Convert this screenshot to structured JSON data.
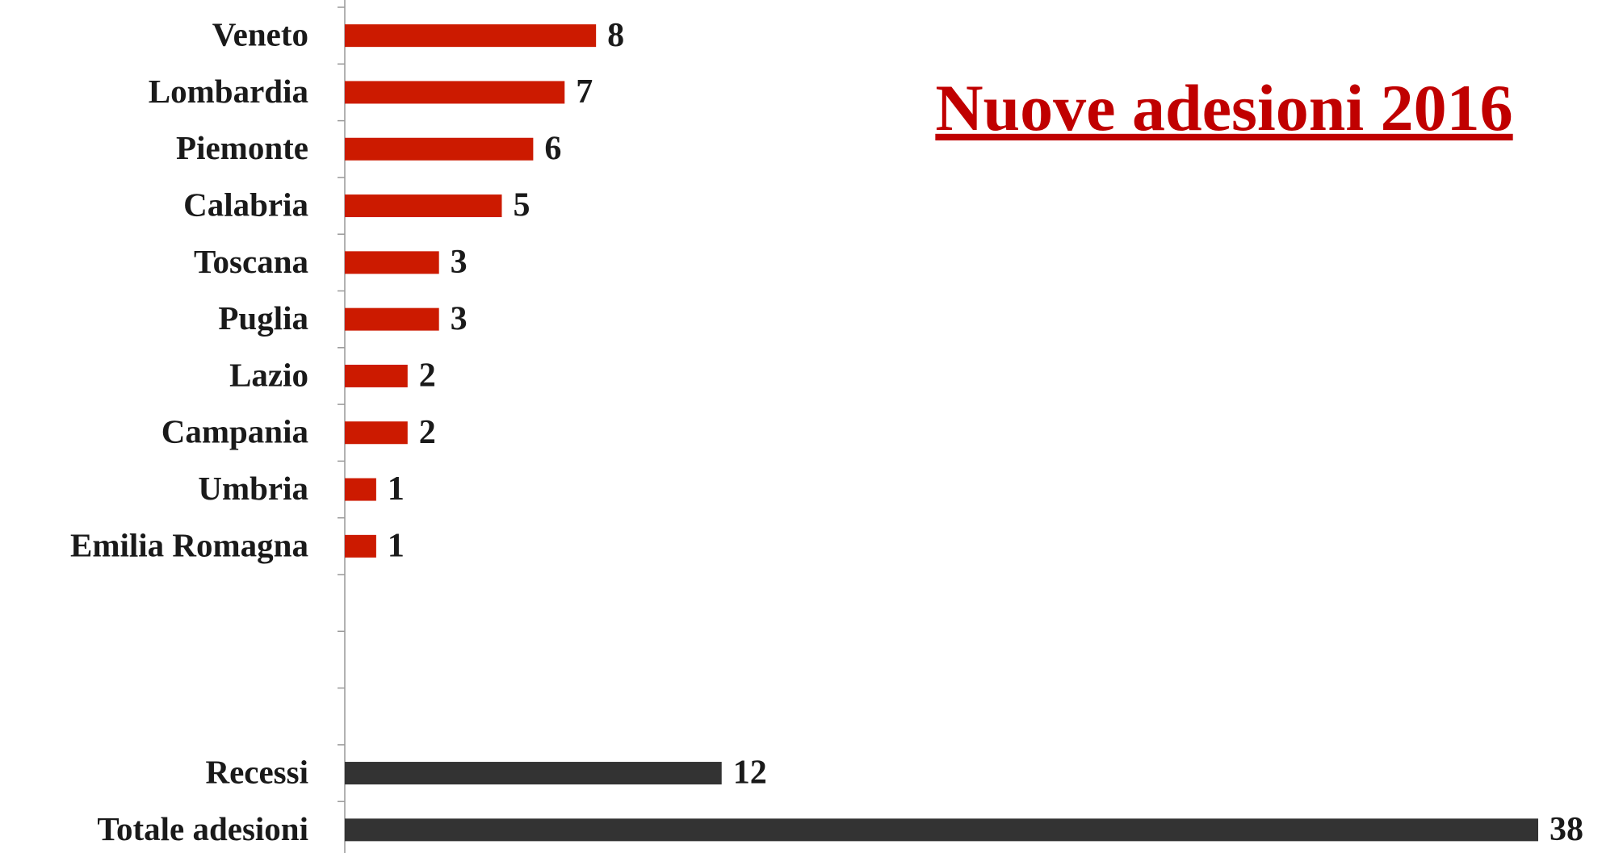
{
  "chart_data": {
    "type": "barh",
    "title": "Nuove adesioni 2016",
    "title_color": "#c00000",
    "categories": [
      "Veneto",
      "Lombardia",
      "Piemonte",
      "Calabria",
      "Toscana",
      "Puglia",
      "Lazio",
      "Campania",
      "Umbria",
      "Emilia Romagna",
      null,
      null,
      null,
      "Recessi",
      "Totale adesioni"
    ],
    "values": [
      8,
      7,
      6,
      5,
      3,
      3,
      2,
      2,
      1,
      1,
      null,
      null,
      null,
      12,
      38
    ],
    "colors": [
      "#cc1a00",
      "#cc1a00",
      "#cc1a00",
      "#cc1a00",
      "#cc1a00",
      "#cc1a00",
      "#cc1a00",
      "#cc1a00",
      "#cc1a00",
      "#cc1a00",
      null,
      null,
      null,
      "#333333",
      "#333333"
    ],
    "xlim": [
      0,
      38
    ]
  }
}
